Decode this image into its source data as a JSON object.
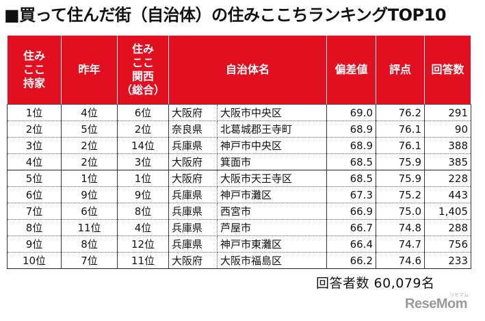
{
  "title": "■買って住んだ街（自治体）の住みここちランキングTOP10",
  "table": {
    "headers": {
      "rank_a": "住み\nここ\n持家",
      "prev": "昨年",
      "rank_b": "住み\nここ\n関西\n（総合）",
      "municipality": "自治体名",
      "deviation": "偏差値",
      "score": "評点",
      "responses": "回答数"
    },
    "rows": [
      {
        "rank": "1位",
        "prev": "4位",
        "kansai": "6位",
        "pref": "大阪府",
        "city": "大阪市中央区",
        "deviation": "69.0",
        "score": "76.2",
        "responses": "291"
      },
      {
        "rank": "2位",
        "prev": "5位",
        "kansai": "2位",
        "pref": "奈良県",
        "city": "北葛城郡王寺町",
        "deviation": "68.9",
        "score": "76.1",
        "responses": "90"
      },
      {
        "rank": "3位",
        "prev": "2位",
        "kansai": "14位",
        "pref": "兵庫県",
        "city": "神戸市中央区",
        "deviation": "68.9",
        "score": "76.1",
        "responses": "388"
      },
      {
        "rank": "4位",
        "prev": "2位",
        "kansai": "3位",
        "pref": "大阪府",
        "city": "箕面市",
        "deviation": "68.5",
        "score": "75.9",
        "responses": "385"
      },
      {
        "rank": "5位",
        "prev": "1位",
        "kansai": "1位",
        "pref": "大阪府",
        "city": "大阪市天王寺区",
        "deviation": "68.5",
        "score": "75.9",
        "responses": "228"
      },
      {
        "rank": "6位",
        "prev": "9位",
        "kansai": "9位",
        "pref": "兵庫県",
        "city": "神戸市灘区",
        "deviation": "67.3",
        "score": "75.2",
        "responses": "443"
      },
      {
        "rank": "7位",
        "prev": "6位",
        "kansai": "8位",
        "pref": "兵庫県",
        "city": "西宮市",
        "deviation": "66.9",
        "score": "75.0",
        "responses": "1,405"
      },
      {
        "rank": "8位",
        "prev": "11位",
        "kansai": "4位",
        "pref": "兵庫県",
        "city": "芦屋市",
        "deviation": "66.7",
        "score": "74.8",
        "responses": "288"
      },
      {
        "rank": "9位",
        "prev": "8位",
        "kansai": "12位",
        "pref": "兵庫県",
        "city": "神戸市東灘区",
        "deviation": "66.4",
        "score": "74.7",
        "responses": "756"
      },
      {
        "rank": "10位",
        "prev": "7位",
        "kansai": "11位",
        "pref": "大阪府",
        "city": "大阪市福島区",
        "deviation": "66.2",
        "score": "74.6",
        "responses": "233"
      }
    ]
  },
  "footer": {
    "respondents": "回答者数  60,079名"
  },
  "logo": {
    "text": "ReseMom",
    "sub": "リセマム"
  },
  "colors": {
    "header_bg": "#e10f1f",
    "header_text": "#ffffff",
    "logo": "#9a9a9a"
  }
}
